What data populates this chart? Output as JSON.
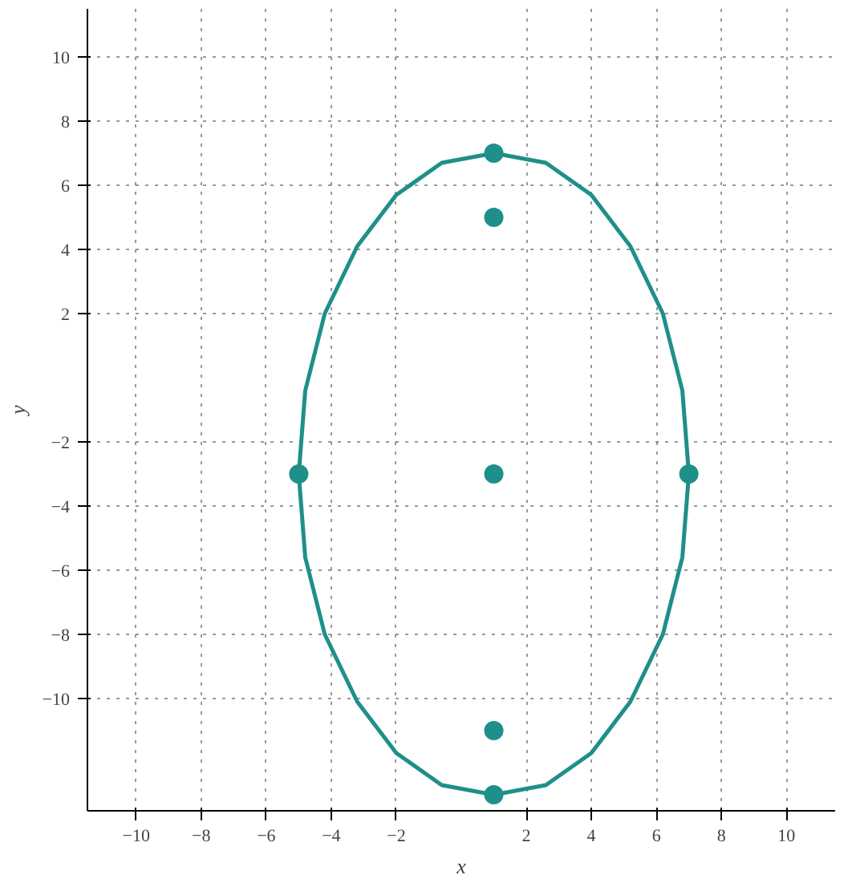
{
  "chart_data": {
    "type": "line",
    "xlabel": "x",
    "ylabel": "y",
    "xlim": [
      -11.5,
      11.5
    ],
    "ylim": [
      -13.5,
      11.5
    ],
    "xticks": [
      -10,
      -8,
      -6,
      -4,
      -2,
      2,
      4,
      6,
      8,
      10
    ],
    "yticks": [
      -10,
      -8,
      -6,
      -4,
      -2,
      2,
      4,
      6,
      8,
      10
    ],
    "grid": true,
    "series": [
      {
        "color": "#1f8f8a",
        "x": [
          -5,
          -4.8,
          -4.2,
          -3.2,
          -2,
          -0.6,
          1
        ],
        "values": [
          -3,
          -0.4,
          2,
          4.1,
          5.7,
          6.7,
          7
        ]
      },
      {
        "color": "#1f8f8a",
        "x": [
          1,
          2.6,
          4,
          5.2,
          6.2,
          6.8,
          7
        ],
        "values": [
          7,
          6.7,
          5.7,
          4.1,
          2,
          -0.4,
          -3
        ]
      },
      {
        "color": "#1f8f8a",
        "x": [
          -5,
          -4.8,
          -4.2,
          -3.2,
          -2,
          -0.6,
          1
        ],
        "values": [
          -3,
          -5.6,
          -8,
          -10.1,
          -11.7,
          -12.7,
          -13
        ]
      },
      {
        "color": "#1f8f8a",
        "x": [
          1,
          2.6,
          4,
          5.2,
          6.2,
          6.8,
          7
        ],
        "values": [
          -13,
          -12.7,
          -11.7,
          -10.1,
          -8,
          -5.6,
          -3
        ]
      },
      {
        "type": "scatter",
        "color": "#1f8f8a",
        "marker": "circle",
        "x": [
          1,
          1,
          1,
          -5,
          7,
          1,
          1
        ],
        "values": [
          7,
          5,
          -3,
          -3,
          -3,
          -11,
          -13
        ]
      }
    ]
  }
}
